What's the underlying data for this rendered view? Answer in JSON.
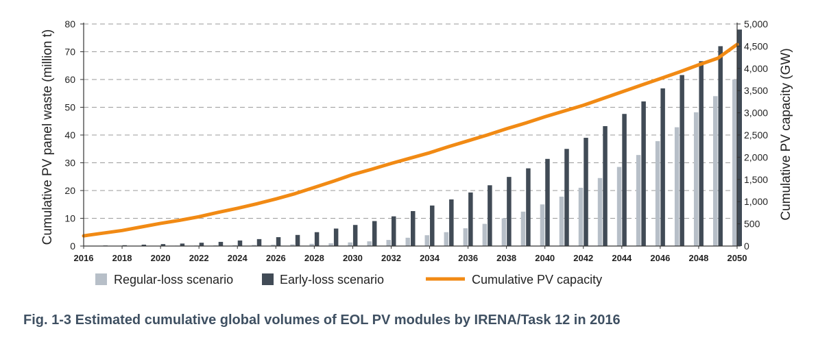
{
  "caption": "Fig. 1-3 Estimated cumulative global volumes of EOL PV modules by IRENA/Task 12 in 2016",
  "chart_data": {
    "type": "bar",
    "title": "",
    "xlabel": "",
    "ylabel": "Cumulative PV panel waste (million t)",
    "y2label": "Cumulative PV capacity (GW)",
    "ylim": [
      0,
      80
    ],
    "y2lim": [
      0,
      5000
    ],
    "yticks": [
      "0",
      "10",
      "20",
      "30",
      "40",
      "50",
      "60",
      "70",
      "80"
    ],
    "y2ticks": [
      "0",
      "500",
      "1,000",
      "1,500",
      "2,000",
      "2,500",
      "3,000",
      "3,500",
      "4,000",
      "4,500",
      "5,000"
    ],
    "xticks": [
      "2016",
      "2018",
      "2020",
      "2022",
      "2024",
      "2026",
      "2028",
      "2030",
      "2032",
      "2034",
      "2036",
      "2038",
      "2040",
      "2042",
      "2044",
      "2046",
      "2048",
      "2050"
    ],
    "grid": "horizontal dashed",
    "legend_position": "bottom",
    "colors": {
      "regular": "#b7bfc8",
      "early": "#414b56",
      "capacity": "#f18a14",
      "axis": "#333333",
      "grid": "#9a9a9a",
      "caption": "#3f5062"
    },
    "years": [
      2016,
      2017,
      2018,
      2019,
      2020,
      2021,
      2022,
      2023,
      2024,
      2025,
      2026,
      2027,
      2028,
      2029,
      2030,
      2031,
      2032,
      2033,
      2034,
      2035,
      2036,
      2037,
      2038,
      2039,
      2040,
      2041,
      2042,
      2043,
      2044,
      2045,
      2046,
      2047,
      2048,
      2049,
      2050
    ],
    "series": [
      {
        "name": "Regular-loss scenario",
        "type": "bar",
        "values": [
          0.04,
          0.06,
          0.08,
          0.1,
          0.12,
          0.16,
          0.2,
          0.25,
          0.3,
          0.4,
          0.5,
          0.6,
          0.8,
          1.0,
          1.3,
          1.7,
          2.2,
          3.0,
          3.9,
          5.0,
          6.4,
          8.0,
          10.0,
          12.4,
          15.0,
          17.8,
          21.0,
          24.5,
          28.5,
          32.8,
          37.8,
          42.8,
          48.2,
          54.0,
          60.0
        ]
      },
      {
        "name": "Early-loss scenario",
        "type": "bar",
        "values": [
          0.1,
          0.2,
          0.3,
          0.5,
          0.7,
          0.9,
          1.2,
          1.5,
          2.0,
          2.5,
          3.2,
          4.0,
          5.0,
          6.3,
          7.6,
          9.0,
          10.7,
          12.6,
          14.6,
          16.8,
          19.3,
          21.9,
          24.9,
          28.0,
          31.4,
          35.0,
          39.0,
          43.2,
          47.6,
          52.1,
          56.8,
          61.6,
          66.6,
          72.0,
          78.0
        ]
      },
      {
        "name": "Cumulative PV capacity",
        "type": "line",
        "axis": "right",
        "values": [
          230,
          290,
          350,
          430,
          510,
          580,
          660,
          760,
          850,
          950,
          1060,
          1180,
          1320,
          1460,
          1610,
          1730,
          1860,
          1980,
          2100,
          2240,
          2370,
          2500,
          2640,
          2770,
          2910,
          3040,
          3170,
          3320,
          3470,
          3620,
          3770,
          3920,
          4080,
          4230,
          4540
        ]
      }
    ]
  }
}
